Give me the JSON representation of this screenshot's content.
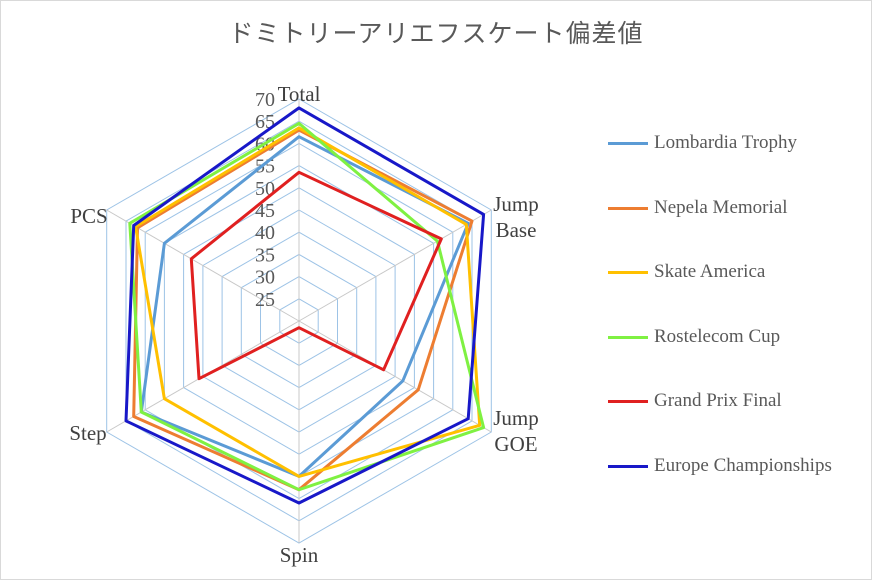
{
  "chart_data": {
    "type": "radar",
    "title": "ドミトリーアリエフスケート偏差値",
    "axes": [
      "Total",
      "Jump\nBase",
      "Jump\nGOE",
      "Spin",
      "Step",
      "PCS"
    ],
    "tick_labels": [
      "25",
      "30",
      "35",
      "40",
      "45",
      "50",
      "55",
      "60",
      "65",
      "70"
    ],
    "rlim": [
      20,
      70
    ],
    "grid": true,
    "legend_position": "right",
    "series": [
      {
        "name": "Lombardia Trophy",
        "color": "#5b9bd5",
        "values": [
          61.5,
          64,
          47,
          55,
          61,
          55
        ]
      },
      {
        "name": "Nepela Memorial",
        "color": "#ed7d31",
        "values": [
          63,
          65,
          51,
          58,
          63,
          62
        ]
      },
      {
        "name": "Skate America",
        "color": "#ffc000",
        "values": [
          63.5,
          63.5,
          67,
          55,
          55,
          62.5
        ]
      },
      {
        "name": "Rostelecom Cup",
        "color": "#7ff142",
        "values": [
          64.5,
          56,
          68,
          58,
          61,
          64
        ]
      },
      {
        "name": "Grand Prix Final",
        "color": "#e02020",
        "values": [
          53.5,
          57,
          42,
          21.5,
          46,
          48
        ]
      },
      {
        "name": "Europe Championships",
        "color": "#1818c8",
        "values": [
          68,
          68,
          64,
          61,
          65,
          63
        ]
      }
    ]
  }
}
